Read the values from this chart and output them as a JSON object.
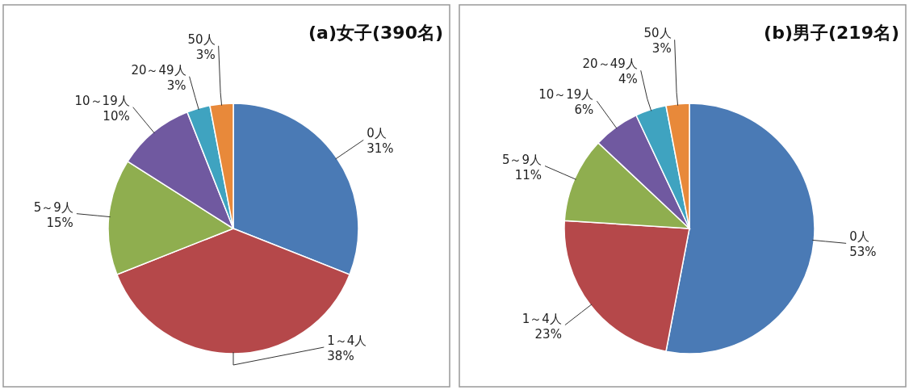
{
  "chart_data": [
    {
      "type": "pie",
      "title": "(a)女子(390名)",
      "categories": [
        "0人",
        "1～4人",
        "5～9人",
        "10～19人",
        "20～49人",
        "50人"
      ],
      "values": [
        31,
        38,
        15,
        10,
        3,
        3
      ],
      "colors": [
        "#4a7ab5",
        "#b5484a",
        "#8fae4f",
        "#7059a0",
        "#3fa3c0",
        "#e8893a"
      ],
      "value_labels": [
        "31%",
        "38%",
        "15%",
        "10%",
        "3%",
        "3%"
      ]
    },
    {
      "type": "pie",
      "title": "(b)男子(219名)",
      "categories": [
        "0人",
        "1～4人",
        "5～9人",
        "10～19人",
        "20～49人",
        "50人"
      ],
      "values": [
        53,
        23,
        11,
        6,
        4,
        3
      ],
      "colors": [
        "#4a7ab5",
        "#b5484a",
        "#8fae4f",
        "#7059a0",
        "#3fa3c0",
        "#e8893a"
      ],
      "value_labels": [
        "53%",
        "23%",
        "11%",
        "6%",
        "4%",
        "3%"
      ]
    }
  ]
}
